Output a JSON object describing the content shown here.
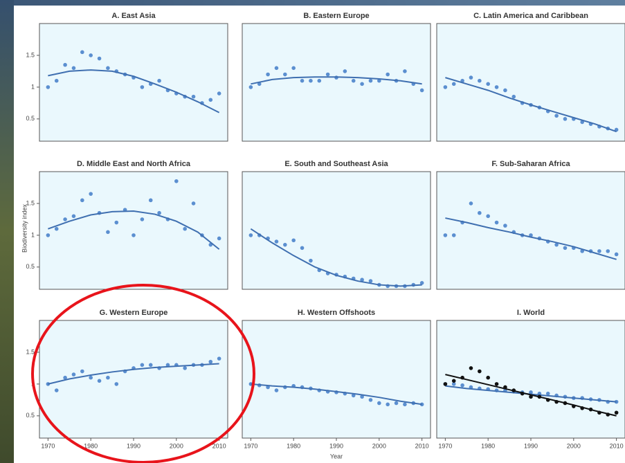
{
  "y_label": "Biodiversity index",
  "x_label": "Year",
  "chart_data": [
    {
      "type": "scatter",
      "title": "A. East Asia",
      "xlim": [
        1968,
        2012
      ],
      "ylim": [
        0.15,
        2.0
      ],
      "yticks": [
        0.5,
        1.0,
        1.5
      ],
      "series": [
        {
          "style": "points",
          "color": "#5b8fd0",
          "x": [
            1970,
            1972,
            1974,
            1976,
            1978,
            1980,
            1982,
            1984,
            1986,
            1988,
            1990,
            1992,
            1994,
            1996,
            1998,
            2000,
            2002,
            2004,
            2006,
            2008,
            2010
          ],
          "values": [
            1.0,
            1.1,
            1.35,
            1.3,
            1.55,
            1.5,
            1.45,
            1.3,
            1.25,
            1.2,
            1.15,
            1.0,
            1.05,
            1.1,
            0.95,
            0.9,
            0.85,
            0.85,
            0.75,
            0.8,
            0.9
          ]
        },
        {
          "style": "line",
          "color": "#3f6fb0",
          "x": [
            1970,
            1975,
            1980,
            1985,
            1990,
            1995,
            2000,
            2005,
            2010
          ],
          "values": [
            1.18,
            1.25,
            1.27,
            1.25,
            1.17,
            1.05,
            0.92,
            0.77,
            0.6
          ]
        }
      ]
    },
    {
      "type": "scatter",
      "title": "B. Eastern Europe",
      "xlim": [
        1968,
        2012
      ],
      "ylim": [
        0.15,
        2.0
      ],
      "series": [
        {
          "style": "points",
          "color": "#5b8fd0",
          "x": [
            1970,
            1972,
            1974,
            1976,
            1978,
            1980,
            1982,
            1984,
            1986,
            1988,
            1990,
            1992,
            1994,
            1996,
            1998,
            2000,
            2002,
            2004,
            2006,
            2008,
            2010
          ],
          "values": [
            1.0,
            1.05,
            1.2,
            1.3,
            1.2,
            1.3,
            1.1,
            1.1,
            1.1,
            1.2,
            1.15,
            1.25,
            1.1,
            1.05,
            1.1,
            1.1,
            1.2,
            1.1,
            1.25,
            1.05,
            0.95
          ]
        },
        {
          "style": "line",
          "color": "#3f6fb0",
          "x": [
            1970,
            1975,
            1980,
            1985,
            1990,
            1995,
            2000,
            2005,
            2010
          ],
          "values": [
            1.05,
            1.12,
            1.15,
            1.16,
            1.16,
            1.15,
            1.13,
            1.1,
            1.05
          ]
        }
      ]
    },
    {
      "type": "scatter",
      "title": "C. Latin America and Caribbean",
      "xlim": [
        1968,
        2012
      ],
      "ylim": [
        0.15,
        2.0
      ],
      "series": [
        {
          "style": "points",
          "color": "#5b8fd0",
          "x": [
            1970,
            1972,
            1974,
            1976,
            1978,
            1980,
            1982,
            1984,
            1986,
            1988,
            1990,
            1992,
            1994,
            1996,
            1998,
            2000,
            2002,
            2004,
            2006,
            2008,
            2010
          ],
          "values": [
            1.0,
            1.05,
            1.1,
            1.15,
            1.1,
            1.05,
            1.0,
            0.95,
            0.85,
            0.75,
            0.72,
            0.68,
            0.62,
            0.55,
            0.5,
            0.5,
            0.45,
            0.42,
            0.38,
            0.35,
            0.33
          ]
        },
        {
          "style": "line",
          "color": "#3f6fb0",
          "x": [
            1970,
            1975,
            1980,
            1985,
            1990,
            1995,
            2000,
            2005,
            2010
          ],
          "values": [
            1.15,
            1.05,
            0.95,
            0.83,
            0.72,
            0.62,
            0.52,
            0.42,
            0.3
          ]
        }
      ]
    },
    {
      "type": "scatter",
      "title": "D. Middle East and North Africa",
      "xlim": [
        1968,
        2012
      ],
      "ylim": [
        0.15,
        2.0
      ],
      "yticks": [
        0.5,
        1.0,
        1.5
      ],
      "series": [
        {
          "style": "points",
          "color": "#5b8fd0",
          "x": [
            1970,
            1972,
            1974,
            1976,
            1978,
            1980,
            1982,
            1984,
            1986,
            1988,
            1990,
            1992,
            1994,
            1996,
            1998,
            2000,
            2002,
            2004,
            2006,
            2008,
            2010
          ],
          "values": [
            1.0,
            1.1,
            1.25,
            1.3,
            1.55,
            1.65,
            1.35,
            1.05,
            1.2,
            1.4,
            1.0,
            1.25,
            1.55,
            1.35,
            1.25,
            1.85,
            1.1,
            1.5,
            1.0,
            0.85,
            0.95
          ]
        },
        {
          "style": "line",
          "color": "#3f6fb0",
          "x": [
            1970,
            1975,
            1980,
            1985,
            1990,
            1995,
            2000,
            2005,
            2010
          ],
          "values": [
            1.1,
            1.22,
            1.32,
            1.37,
            1.38,
            1.33,
            1.22,
            1.05,
            0.78
          ]
        }
      ]
    },
    {
      "type": "scatter",
      "title": "E. South and Southeast Asia",
      "xlim": [
        1968,
        2012
      ],
      "ylim": [
        0.15,
        2.0
      ],
      "series": [
        {
          "style": "points",
          "color": "#5b8fd0",
          "x": [
            1970,
            1972,
            1974,
            1976,
            1978,
            1980,
            1982,
            1984,
            1986,
            1988,
            1990,
            1992,
            1994,
            1996,
            1998,
            2000,
            2002,
            2004,
            2006,
            2008,
            2010
          ],
          "values": [
            1.0,
            1.0,
            0.95,
            0.9,
            0.85,
            0.92,
            0.8,
            0.6,
            0.45,
            0.4,
            0.38,
            0.35,
            0.32,
            0.3,
            0.28,
            0.22,
            0.2,
            0.2,
            0.2,
            0.22,
            0.25
          ]
        },
        {
          "style": "line",
          "color": "#3f6fb0",
          "x": [
            1970,
            1975,
            1980,
            1985,
            1990,
            1995,
            2000,
            2005,
            2010
          ],
          "values": [
            1.1,
            0.88,
            0.68,
            0.5,
            0.37,
            0.28,
            0.22,
            0.2,
            0.22
          ]
        }
      ]
    },
    {
      "type": "scatter",
      "title": "F. Sub-Saharan Africa",
      "xlim": [
        1968,
        2012
      ],
      "ylim": [
        0.15,
        2.0
      ],
      "series": [
        {
          "style": "points",
          "color": "#5b8fd0",
          "x": [
            1970,
            1972,
            1974,
            1976,
            1978,
            1980,
            1982,
            1984,
            1986,
            1988,
            1990,
            1992,
            1994,
            1996,
            1998,
            2000,
            2002,
            2004,
            2006,
            2008,
            2010
          ],
          "values": [
            1.0,
            1.0,
            1.2,
            1.5,
            1.35,
            1.3,
            1.2,
            1.15,
            1.05,
            1.0,
            1.0,
            0.95,
            0.9,
            0.85,
            0.8,
            0.8,
            0.75,
            0.75,
            0.75,
            0.75,
            0.7
          ]
        },
        {
          "style": "line",
          "color": "#3f6fb0",
          "x": [
            1970,
            1975,
            1980,
            1985,
            1990,
            1995,
            2000,
            2005,
            2010
          ],
          "values": [
            1.27,
            1.2,
            1.12,
            1.05,
            0.97,
            0.9,
            0.82,
            0.72,
            0.62
          ]
        }
      ]
    },
    {
      "type": "scatter",
      "title": "G. Western Europe",
      "xlim": [
        1968,
        2012
      ],
      "ylim": [
        0.15,
        2.0
      ],
      "yticks": [
        0.5,
        1.0,
        1.5
      ],
      "xticks": [
        1970,
        1980,
        1990,
        2000,
        2010
      ],
      "series": [
        {
          "style": "points",
          "color": "#5b8fd0",
          "x": [
            1970,
            1972,
            1974,
            1976,
            1978,
            1980,
            1982,
            1984,
            1986,
            1988,
            1990,
            1992,
            1994,
            1996,
            1998,
            2000,
            2002,
            2004,
            2006,
            2008,
            2010
          ],
          "values": [
            1.0,
            0.9,
            1.1,
            1.15,
            1.2,
            1.1,
            1.05,
            1.1,
            1.0,
            1.2,
            1.25,
            1.3,
            1.3,
            1.25,
            1.3,
            1.3,
            1.25,
            1.3,
            1.3,
            1.35,
            1.4
          ]
        },
        {
          "style": "line",
          "color": "#3f6fb0",
          "x": [
            1970,
            1975,
            1980,
            1985,
            1990,
            1995,
            2000,
            2005,
            2010
          ],
          "values": [
            1.0,
            1.08,
            1.14,
            1.19,
            1.23,
            1.26,
            1.28,
            1.3,
            1.32
          ]
        }
      ]
    },
    {
      "type": "scatter",
      "title": "H. Western Offshoots",
      "xlim": [
        1968,
        2012
      ],
      "ylim": [
        0.15,
        2.0
      ],
      "xticks": [
        1970,
        1980,
        1990,
        2000,
        2010
      ],
      "series": [
        {
          "style": "points",
          "color": "#5b8fd0",
          "x": [
            1970,
            1972,
            1974,
            1976,
            1978,
            1980,
            1982,
            1984,
            1986,
            1988,
            1990,
            1992,
            1994,
            1996,
            1998,
            2000,
            2002,
            2004,
            2006,
            2008,
            2010
          ],
          "values": [
            1.0,
            0.98,
            0.95,
            0.9,
            0.95,
            0.97,
            0.95,
            0.93,
            0.9,
            0.88,
            0.87,
            0.85,
            0.82,
            0.8,
            0.75,
            0.7,
            0.68,
            0.7,
            0.68,
            0.7,
            0.68
          ]
        },
        {
          "style": "line",
          "color": "#3f6fb0",
          "x": [
            1970,
            1975,
            1980,
            1985,
            1990,
            1995,
            2000,
            2005,
            2010
          ],
          "values": [
            1.0,
            0.97,
            0.95,
            0.92,
            0.88,
            0.84,
            0.79,
            0.73,
            0.68
          ]
        }
      ]
    },
    {
      "type": "scatter",
      "title": "I. World",
      "xlim": [
        1968,
        2012
      ],
      "ylim": [
        0.15,
        2.0
      ],
      "xticks": [
        1970,
        1980,
        1990,
        2000,
        2010
      ],
      "series": [
        {
          "style": "points",
          "color": "#5b8fd0",
          "x": [
            1970,
            1972,
            1974,
            1976,
            1978,
            1980,
            1982,
            1984,
            1986,
            1988,
            1990,
            1992,
            1994,
            1996,
            1998,
            2000,
            2002,
            2004,
            2006,
            2008,
            2010
          ],
          "values": [
            1.0,
            1.0,
            0.98,
            0.95,
            0.93,
            0.92,
            0.9,
            0.9,
            0.88,
            0.87,
            0.87,
            0.85,
            0.85,
            0.82,
            0.8,
            0.78,
            0.78,
            0.76,
            0.75,
            0.72,
            0.72
          ]
        },
        {
          "style": "line",
          "color": "#3f6fb0",
          "x": [
            1970,
            1975,
            1980,
            1985,
            1990,
            1995,
            2000,
            2005,
            2010
          ],
          "values": [
            0.97,
            0.93,
            0.9,
            0.87,
            0.84,
            0.81,
            0.78,
            0.75,
            0.72
          ]
        },
        {
          "style": "points",
          "color": "#111111",
          "x": [
            1970,
            1972,
            1974,
            1976,
            1978,
            1980,
            1982,
            1984,
            1986,
            1988,
            1990,
            1992,
            1994,
            1996,
            1998,
            2000,
            2002,
            2004,
            2006,
            2008,
            2010
          ],
          "values": [
            1.0,
            1.05,
            1.1,
            1.25,
            1.2,
            1.1,
            1.0,
            0.95,
            0.9,
            0.85,
            0.8,
            0.8,
            0.75,
            0.72,
            0.7,
            0.65,
            0.62,
            0.6,
            0.55,
            0.52,
            0.55
          ]
        },
        {
          "style": "line",
          "color": "#111111",
          "x": [
            1970,
            1975,
            1980,
            1985,
            1990,
            1995,
            2000,
            2005,
            2010
          ],
          "values": [
            1.15,
            1.07,
            0.99,
            0.91,
            0.83,
            0.75,
            0.67,
            0.58,
            0.5
          ]
        }
      ]
    }
  ]
}
